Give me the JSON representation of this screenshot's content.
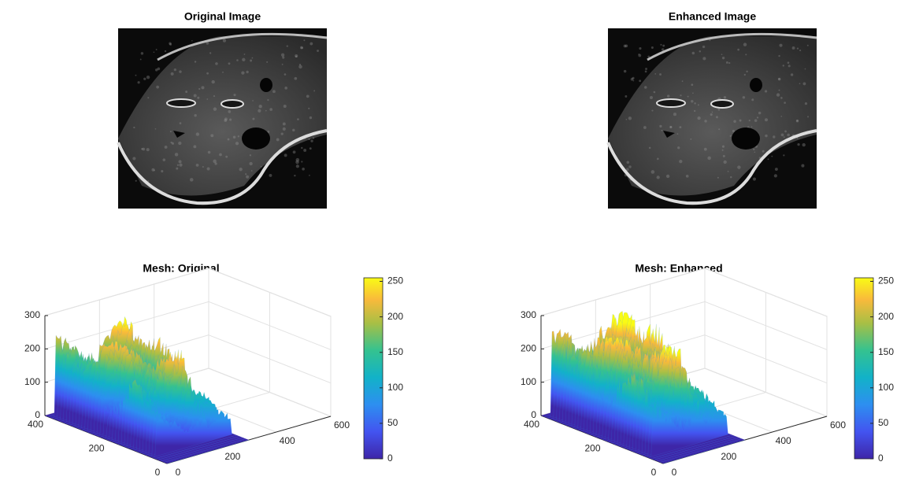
{
  "chart_data": [
    {
      "type": "image",
      "title": "Original Image"
    },
    {
      "type": "image",
      "title": "Enhanced Image"
    },
    {
      "type": "mesh",
      "title": "Mesh: Original",
      "xlim": [
        0,
        600
      ],
      "ylim": [
        0,
        400
      ],
      "zlim": [
        0,
        300
      ],
      "xticks": [
        0,
        200,
        400,
        600
      ],
      "yticks": [
        0,
        200,
        400
      ],
      "zticks": [
        0,
        100,
        200,
        300
      ],
      "colorbar_lim": [
        0,
        255
      ],
      "colorbar_ticks": [
        0,
        50,
        100,
        150,
        200,
        250
      ]
    },
    {
      "type": "mesh",
      "title": "Mesh: Enhanced",
      "xlim": [
        0,
        600
      ],
      "ylim": [
        0,
        400
      ],
      "zlim": [
        0,
        300
      ],
      "xticks": [
        0,
        200,
        400,
        600
      ],
      "yticks": [
        0,
        200,
        400
      ],
      "zticks": [
        0,
        100,
        200,
        300
      ],
      "colorbar_lim": [
        0,
        255
      ],
      "colorbar_ticks": [
        0,
        50,
        100,
        150,
        200,
        250
      ]
    }
  ]
}
